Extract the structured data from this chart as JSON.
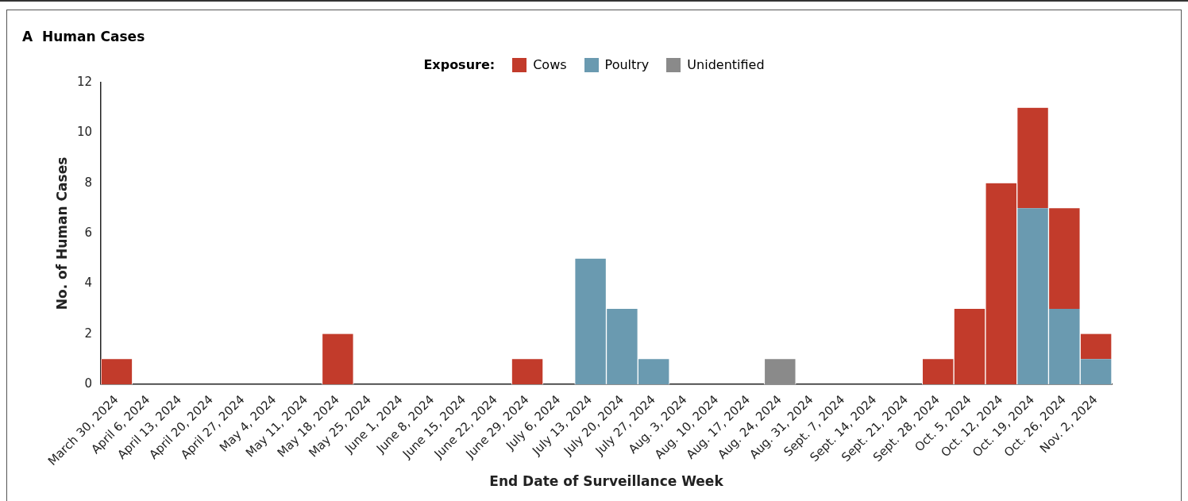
{
  "chart_data": {
    "type": "bar",
    "title": "A  Human Cases",
    "legend_title": "Exposure:",
    "xlabel": "End Date of Surveillance Week",
    "ylabel": "No. of Human Cases",
    "categories": [
      "March 30, 2024",
      "April 6, 2024",
      "April 13, 2024",
      "April 20, 2024",
      "April 27, 2024",
      "May 4, 2024",
      "May 11, 2024",
      "May 18, 2024",
      "May 25, 2024",
      "June 1, 2024",
      "June 8, 2024",
      "June 15, 2024",
      "June 22, 2024",
      "June 29, 2024",
      "July 6, 2024",
      "July 13, 2024",
      "July 20, 2024",
      "July 27, 2024",
      "Aug. 3, 2024",
      "Aug. 10, 2024",
      "Aug. 17, 2024",
      "Aug. 24, 2024",
      "Aug. 31, 2024",
      "Sept. 7, 2024",
      "Sept. 14, 2024",
      "Sept. 21, 2024",
      "Sept. 28, 2024",
      "Oct. 5, 2024",
      "Oct. 12, 2024",
      "Oct. 19, 2024",
      "Oct. 26, 2024",
      "Nov. 2, 2024"
    ],
    "series": [
      {
        "name": "Unidentified",
        "color": "#8a8a8a",
        "values": [
          0,
          0,
          0,
          0,
          0,
          0,
          0,
          0,
          0,
          0,
          0,
          0,
          0,
          0,
          0,
          0,
          0,
          0,
          0,
          0,
          0,
          1,
          0,
          0,
          0,
          0,
          0,
          0,
          0,
          0,
          0,
          0
        ]
      },
      {
        "name": "Poultry",
        "color": "#6a9ab0",
        "values": [
          0,
          0,
          0,
          0,
          0,
          0,
          0,
          0,
          0,
          0,
          0,
          0,
          0,
          0,
          0,
          5,
          3,
          1,
          0,
          0,
          0,
          0,
          0,
          0,
          0,
          0,
          0,
          0,
          0,
          7,
          3,
          1
        ]
      },
      {
        "name": "Cows",
        "color": "#c23b2b",
        "values": [
          1,
          0,
          0,
          0,
          0,
          0,
          0,
          2,
          0,
          0,
          0,
          0,
          0,
          1,
          0,
          0,
          0,
          0,
          0,
          0,
          0,
          0,
          0,
          0,
          0,
          0,
          1,
          3,
          8,
          4,
          4,
          1
        ]
      }
    ],
    "stacked": true,
    "ylim": [
      0,
      12
    ],
    "yticks": [
      0,
      2,
      4,
      6,
      8,
      10,
      12
    ],
    "grid": false,
    "legend": "top"
  }
}
